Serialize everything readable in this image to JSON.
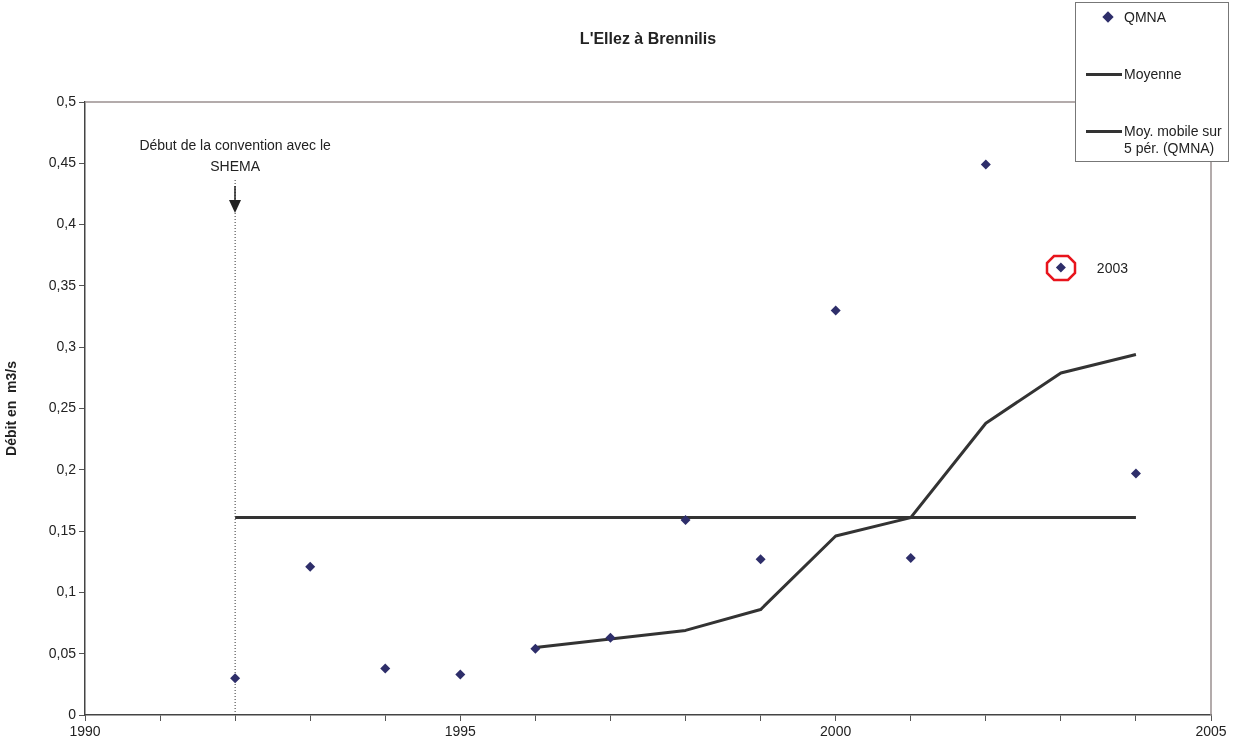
{
  "chart_data": {
    "type": "scatter",
    "title": "L'Ellez à Brennilis",
    "ylabel": "Débit en  m3/s",
    "xlim": [
      1990,
      2005
    ],
    "xticks": [
      1990,
      {
        "value": 1991,
        "label": null
      },
      {
        "value": 1992,
        "label": null
      },
      {
        "value": 1993,
        "label": null
      },
      {
        "value": 1994,
        "label": null
      },
      1995,
      {
        "value": 1996,
        "label": null
      },
      {
        "value": 1997,
        "label": null
      },
      {
        "value": 1998,
        "label": null
      },
      {
        "value": 1999,
        "label": null
      },
      2000,
      {
        "value": 2001,
        "label": null
      },
      {
        "value": 2002,
        "label": null
      },
      {
        "value": 2003,
        "label": null
      },
      {
        "value": 2004,
        "label": null
      },
      2005
    ],
    "ylim": [
      0,
      0.5
    ],
    "yticks": [
      0,
      {
        "value": 0.05,
        "label": "0,05"
      },
      {
        "value": 0.1,
        "label": "0,1"
      },
      {
        "value": 0.15,
        "label": "0,15"
      },
      {
        "value": 0.2,
        "label": "0,2"
      },
      {
        "value": 0.25,
        "label": "0,25"
      },
      {
        "value": 0.3,
        "label": "0,3"
      },
      {
        "value": 0.35,
        "label": "0,35"
      },
      {
        "value": 0.4,
        "label": "0,4"
      },
      {
        "value": 0.45,
        "label": "0,45"
      },
      {
        "value": 0.5,
        "label": "0,5"
      }
    ],
    "grid": false,
    "legend": "top right",
    "series": [
      {
        "name": "QMNA",
        "type": "scatter",
        "marker": "diamond",
        "color": "#2e2e6a",
        "x": [
          1992,
          1993,
          1994,
          1995,
          1996,
          1997,
          1998,
          1999,
          2000,
          2001,
          2002,
          2003,
          2004
        ],
        "values": [
          0.03,
          0.121,
          0.038,
          0.033,
          0.054,
          0.063,
          0.159,
          0.127,
          0.33,
          0.128,
          0.449,
          0.365,
          0.197
        ]
      },
      {
        "name": "Moyenne",
        "type": "line",
        "marker": "none",
        "line_style": "solid",
        "color": "#333333",
        "x": [
          1992,
          2004
        ],
        "values": [
          0.161,
          0.161
        ]
      },
      {
        "name": "Moy. mobile sur 5 pér. (QMNA)",
        "type": "line",
        "marker": "none",
        "line_style": "solid",
        "color": "#333333",
        "x": [
          1996,
          1997,
          1998,
          1999,
          2000,
          2001,
          2002,
          2003,
          2004
        ],
        "values": [
          0.055,
          0.062,
          0.069,
          0.086,
          0.146,
          0.161,
          0.238,
          0.279,
          0.294
        ]
      }
    ],
    "ref_lines": [
      {
        "axis": "x",
        "value": 1992,
        "label": "Début de la convention avec le SHEMA",
        "line_style": "dotted",
        "color": "#333333"
      }
    ],
    "annotations": [
      {
        "text": "2003",
        "x": 2003,
        "y": 0.365
      }
    ]
  }
}
